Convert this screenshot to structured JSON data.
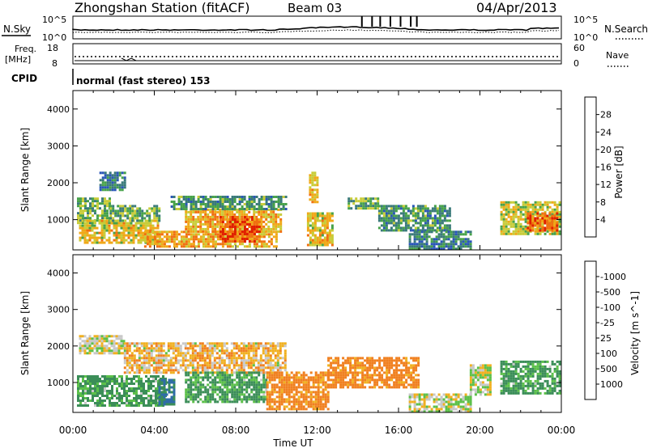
{
  "header": {
    "station": "Zhongshan Station (fitACF)",
    "beam": "Beam 03",
    "date": "04/Apr/2013"
  },
  "noise_panel": {
    "left_label": "N.Sky",
    "left_ticks": [
      "10^5",
      "10^0"
    ],
    "right_label": "N.Search",
    "right_ticks": [
      "10^5",
      "10^0"
    ]
  },
  "freq_panel": {
    "left_label_1": "Freq.",
    "left_label_2": "[MHz]",
    "left_ticks": [
      "18",
      "8"
    ],
    "right_label": "Nave",
    "right_ticks": [
      "60",
      "0"
    ]
  },
  "cpid": {
    "label": "CPID",
    "value": "normal (fast stereo) 153"
  },
  "x_axis": {
    "label": "Time UT",
    "ticks": [
      "00:00",
      "04:00",
      "08:00",
      "12:00",
      "16:00",
      "20:00",
      "00:00"
    ]
  },
  "panels": [
    {
      "ylabel": "Slant Range [km]",
      "yticks": [
        "1000",
        "2000",
        "3000",
        "4000"
      ],
      "colorbar": {
        "label": "Power [dB]",
        "ticks": [
          "4",
          "8",
          "12",
          "16",
          "20",
          "24",
          "28"
        ],
        "colors": [
          "#1a2ee8",
          "#2a56b8",
          "#3a7a7a",
          "#47a24a",
          "#c8cc38",
          "#f0a818",
          "#f07010",
          "#e02000"
        ]
      }
    },
    {
      "ylabel": "Slant Range [km]",
      "yticks": [
        "1000",
        "2000",
        "3000",
        "4000"
      ],
      "colorbar": {
        "label": "Velocity [m s^-1]",
        "ticks": [
          "1000",
          "500",
          "100",
          "25",
          "-25",
          "-100",
          "-500",
          "-1000"
        ],
        "colors": [
          "#2848b8",
          "#2f6ca8",
          "#3b8e58",
          "#5cc04a",
          "#c8c8c8",
          "#f0b020",
          "#f08020",
          "#e84a10",
          "#e01a00"
        ]
      }
    }
  ],
  "chart_data": [
    {
      "type": "heatmap",
      "title": "Power",
      "xlabel": "Time UT",
      "ylabel": "Slant Range [km]",
      "xlim": [
        0,
        24
      ],
      "ylim": [
        180,
        4500
      ],
      "colorbar_label": "Power [dB]",
      "colorbar_ticks": [
        4,
        8,
        12,
        16,
        20,
        24,
        28
      ],
      "regions": [
        {
          "t0": 0.2,
          "t1": 1.8,
          "r0": 900,
          "r1": 1600,
          "value": 14
        },
        {
          "t0": 1.3,
          "t1": 2.6,
          "r0": 1800,
          "r1": 2300,
          "value": 10
        },
        {
          "t0": 0.3,
          "t1": 4.2,
          "r0": 400,
          "r1": 1000,
          "value": 20
        },
        {
          "t0": 1.8,
          "t1": 4.2,
          "r0": 1000,
          "r1": 1400,
          "value": 14
        },
        {
          "t0": 3.5,
          "t1": 10.0,
          "r0": 300,
          "r1": 700,
          "value": 22
        },
        {
          "t0": 5.5,
          "t1": 10.2,
          "r0": 700,
          "r1": 1300,
          "value": 22
        },
        {
          "t0": 7.2,
          "t1": 9.2,
          "r0": 400,
          "r1": 1100,
          "value": 28
        },
        {
          "t0": 4.8,
          "t1": 10.5,
          "r0": 1300,
          "r1": 1650,
          "value": 12
        },
        {
          "t0": 11.5,
          "t1": 12.8,
          "r0": 300,
          "r1": 1200,
          "value": 20
        },
        {
          "t0": 11.6,
          "t1": 12.0,
          "r0": 1500,
          "r1": 2300,
          "value": 22
        },
        {
          "t0": 13.5,
          "t1": 15.0,
          "r0": 1300,
          "r1": 1600,
          "value": 14
        },
        {
          "t0": 15.0,
          "t1": 18.5,
          "r0": 700,
          "r1": 1400,
          "value": 12
        },
        {
          "t0": 16.5,
          "t1": 19.5,
          "r0": 200,
          "r1": 700,
          "value": 10
        },
        {
          "t0": 21.0,
          "t1": 23.9,
          "r0": 600,
          "r1": 1500,
          "value": 18
        },
        {
          "t0": 22.3,
          "t1": 23.8,
          "r0": 700,
          "r1": 1200,
          "value": 26
        }
      ]
    },
    {
      "type": "heatmap",
      "title": "Velocity",
      "xlabel": "Time UT",
      "ylabel": "Slant Range [km]",
      "xlim": [
        0,
        24
      ],
      "ylim": [
        180,
        4500
      ],
      "colorbar_label": "Velocity [m s^-1]",
      "colorbar_ticks": [
        1000,
        500,
        100,
        25,
        -25,
        -100,
        -500,
        -1000
      ],
      "regions": [
        {
          "t0": 0.3,
          "t1": 2.5,
          "r0": 1800,
          "r1": 2300,
          "value": 0
        },
        {
          "t0": 0.2,
          "t1": 4.5,
          "r0": 400,
          "r1": 1200,
          "value": 150
        },
        {
          "t0": 4.2,
          "t1": 5.0,
          "r0": 400,
          "r1": 1100,
          "value": 600
        },
        {
          "t0": 2.5,
          "t1": 10.5,
          "r0": 1300,
          "r1": 2100,
          "value": -60
        },
        {
          "t0": 5.5,
          "t1": 9.5,
          "r0": 500,
          "r1": 1300,
          "value": 150
        },
        {
          "t0": 9.5,
          "t1": 12.5,
          "r0": 300,
          "r1": 1300,
          "value": -200
        },
        {
          "t0": 12.5,
          "t1": 17.0,
          "r0": 900,
          "r1": 1700,
          "value": -200
        },
        {
          "t0": 16.5,
          "t1": 19.5,
          "r0": 200,
          "r1": 700,
          "value": 10
        },
        {
          "t0": 19.5,
          "t1": 20.5,
          "r0": 700,
          "r1": 1500,
          "value": 10
        },
        {
          "t0": 21.0,
          "t1": 23.9,
          "r0": 700,
          "r1": 1600,
          "value": 150
        }
      ]
    }
  ]
}
